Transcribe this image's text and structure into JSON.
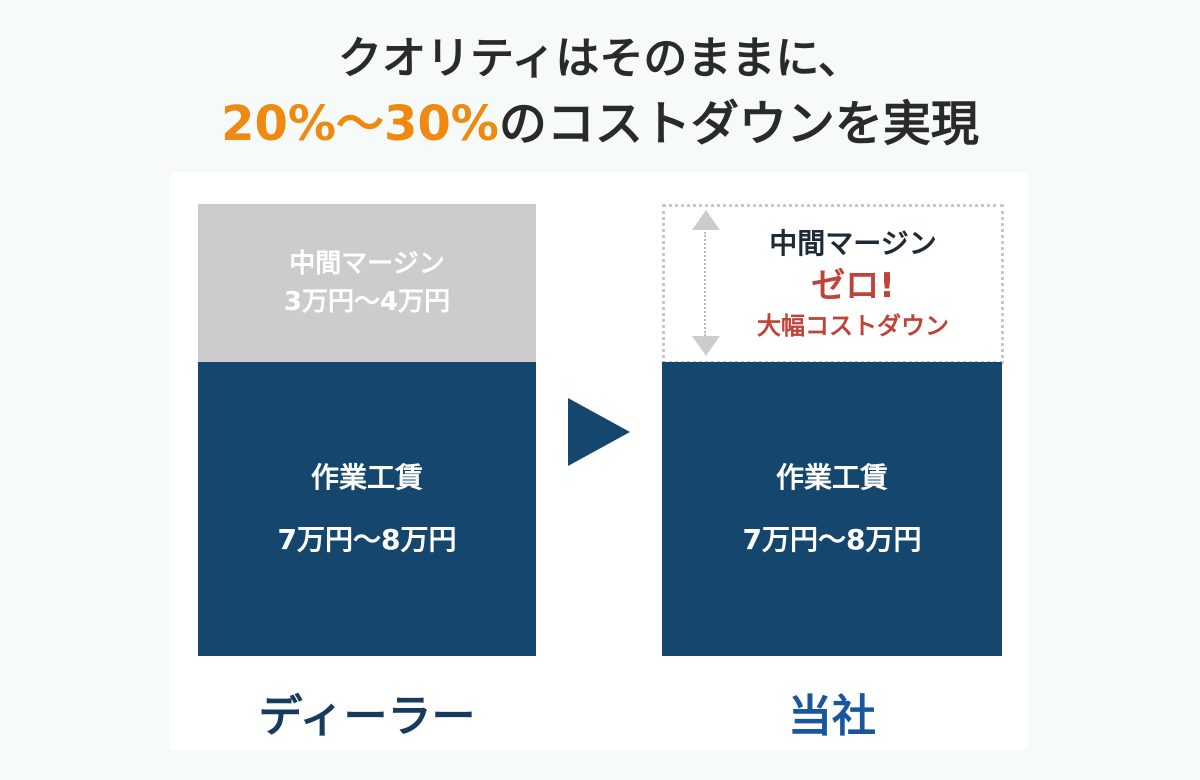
{
  "headline": {
    "line1": "クオリティはそのままに、",
    "line2_highlight": "20%〜30%",
    "line2_rest": "のコストダウンを実現"
  },
  "dealer": {
    "margin_label": "中間マージン",
    "margin_value": "3万円〜4万円",
    "labor_label": "作業工賃",
    "labor_value": "7万円〜8万円",
    "name": "ディーラー"
  },
  "company": {
    "margin_label": "中間マージン",
    "margin_zero": "ゼロ!",
    "margin_note": "大幅コストダウン",
    "labor_label": "作業工賃",
    "labor_value": "7万円〜8万円",
    "name": "当社"
  },
  "colors": {
    "accent": "#ee8a12",
    "navy": "#14466e",
    "red": "#c0433a",
    "company_label": "#1a56a0"
  }
}
